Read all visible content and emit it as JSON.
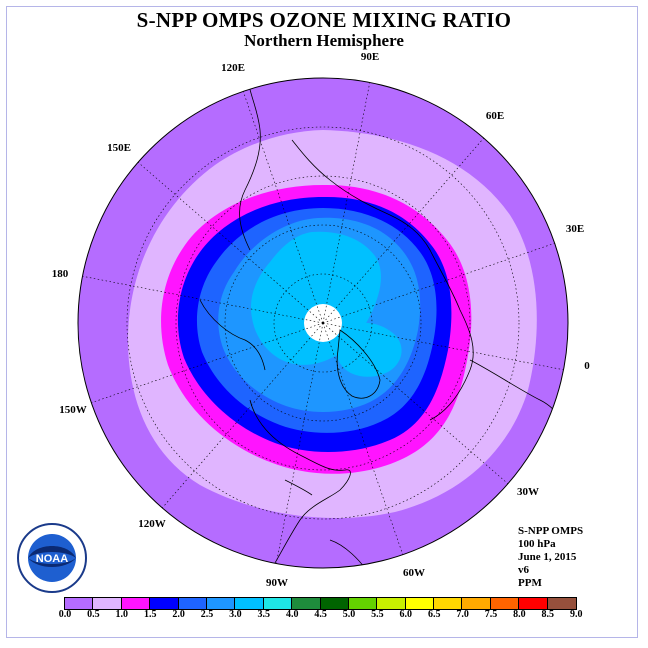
{
  "title": "S-NPP OMPS OZONE MIXING RATIO",
  "subtitle": "Northern Hemisphere",
  "longitude_labels": [
    "90E",
    "60E",
    "30E",
    "0",
    "30W",
    "60W",
    "90W",
    "120W",
    "150W",
    "180",
    "150E",
    "120E"
  ],
  "info": {
    "instrument": "S-NPP OMPS",
    "level": "100 hPa",
    "date": "June 1, 2015",
    "version": "v6",
    "units": "PPM"
  },
  "logo": {
    "label": "NOAA",
    "ring_text": "NATIONAL OCEANIC AND ATMOSPHERIC ADMINISTRATION · U.S. DEPARTMENT OF COMMERCE"
  },
  "legend": {
    "ticks": [
      "0.0",
      "0.5",
      "1.0",
      "1.5",
      "2.0",
      "2.5",
      "3.0",
      "3.5",
      "4.0",
      "4.5",
      "5.0",
      "5.5",
      "6.0",
      "6.5",
      "7.0",
      "7.5",
      "8.0",
      "8.5",
      "9.0"
    ],
    "colors": [
      "#b56cff",
      "#e0b5ff",
      "#ff14ff",
      "#0000ff",
      "#1e64ff",
      "#1e96ff",
      "#00c0ff",
      "#1ee6e6",
      "#1e8c3c",
      "#006400",
      "#64d200",
      "#c8f000",
      "#ffff00",
      "#ffd700",
      "#ffaa00",
      "#ff6400",
      "#ff0000",
      "#96503c"
    ]
  },
  "field_colors": {
    "outer": "#b56cff",
    "ring_0_5": "#e0b5ff",
    "ring_1_0": "#ff14ff",
    "ring_1_5": "#0000ff",
    "ring_2_0": "#1e64ff",
    "ring_2_5": "#1e96ff",
    "ring_3_0": "#00c0ff",
    "pole_no_data": "#ffffff"
  }
}
